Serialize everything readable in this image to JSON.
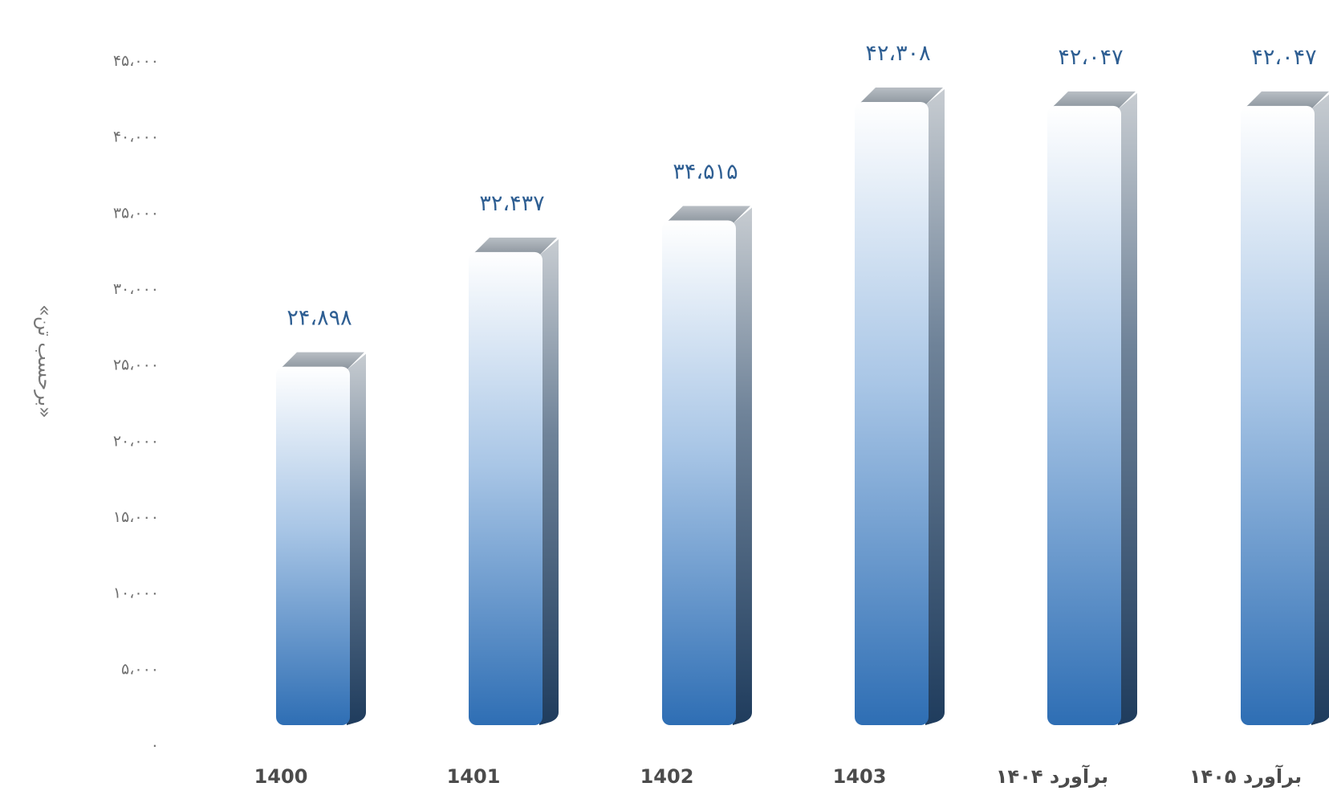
{
  "chart_data": {
    "type": "bar",
    "title": "",
    "xlabel": "",
    "ylabel": "«برحسب تن»",
    "ylim": [
      0,
      45000
    ],
    "grid": false,
    "legend": "none",
    "yticks": [
      0,
      5000,
      10000,
      15000,
      20000,
      25000,
      30000,
      35000,
      40000,
      45000
    ],
    "ytick_labels": [
      "۰",
      "۵،۰۰۰",
      "۱۰،۰۰۰",
      "۱۵،۰۰۰",
      "۲۰،۰۰۰",
      "۲۵،۰۰۰",
      "۳۰،۰۰۰",
      "۳۵،۰۰۰",
      "۴۰،۰۰۰",
      "۴۵،۰۰۰"
    ],
    "categories": [
      "1400",
      "1401",
      "1402",
      "1403",
      "برآورد ۱۴۰۴",
      "برآورد ۱۴۰۵"
    ],
    "values": [
      24898,
      32437,
      34515,
      42308,
      42047,
      42047
    ],
    "data_labels": [
      "۲۴،۸۹۸",
      "۳۲،۴۳۷",
      "۳۴،۵۱۵",
      "۴۲،۳۰۸",
      "۴۲،۰۴۷",
      "۴۲،۰۴۷"
    ],
    "colors": {
      "bar_top": "#ffffff",
      "bar_bottom": "#2e6eb4",
      "bar_side_dark": "#243f5c",
      "bar_cap": "#9aa2aa",
      "data_label": "#2f5f93",
      "tick_label": "#6f6f6f",
      "category_label": "#4b4b4b"
    }
  }
}
